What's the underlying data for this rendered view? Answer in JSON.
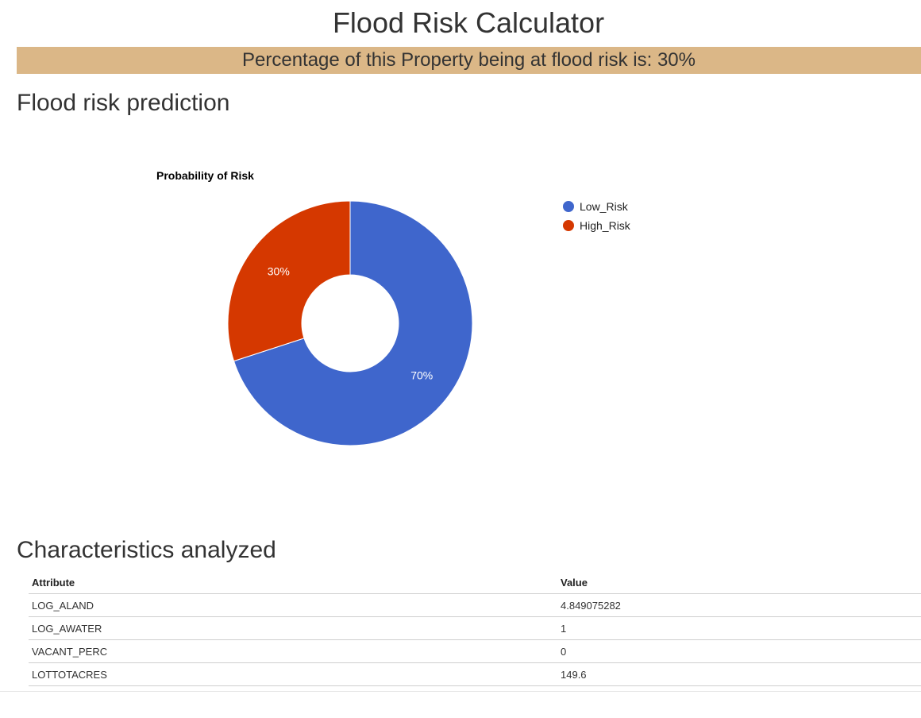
{
  "page": {
    "title": "Flood Risk Calculator",
    "banner_text": "Percentage of this Property being at flood risk is: 30%"
  },
  "sections": {
    "prediction_heading": "Flood risk prediction",
    "characteristics_heading": "Characteristics analyzed"
  },
  "chart_data": {
    "type": "pie",
    "title": "Probability of Risk",
    "donut": true,
    "legend_position": "right",
    "series": [
      {
        "name": "Low_Risk",
        "value": 70,
        "label": "70%",
        "color": "#3f66cc"
      },
      {
        "name": "High_Risk",
        "value": 30,
        "label": "30%",
        "color": "#d53800"
      }
    ]
  },
  "table": {
    "headers": [
      "Attribute",
      "Value"
    ],
    "rows": [
      {
        "attribute": "LOG_ALAND",
        "value": "4.849075282"
      },
      {
        "attribute": "LOG_AWATER",
        "value": "1"
      },
      {
        "attribute": "VACANT_PERC",
        "value": "0"
      },
      {
        "attribute": "LOTTOTACRES",
        "value": "149.6"
      }
    ]
  }
}
